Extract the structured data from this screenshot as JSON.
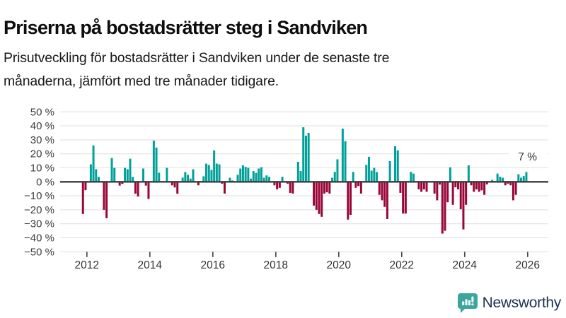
{
  "header": {
    "title": "Priserna på bostadsrätter steg i Sandviken",
    "subtitle_lines": [
      "Prisutveckling för bostadsrätter i Sandviken under de senaste tre",
      "månaderna, jämfört med tre månader tidigare."
    ]
  },
  "annotation": {
    "last_value_label": "7 %"
  },
  "branding": {
    "name": "Newsworthy",
    "icon": "bar-chart-speech-bubble-icon",
    "icon_color": "#3aa69e",
    "text_color": "#1d3150"
  },
  "chart_data": {
    "type": "bar",
    "unit": "percent",
    "frequency": "monthly",
    "start_month": "2011-11",
    "end_month": "2025-12",
    "grid": true,
    "ylim": [
      -50,
      50
    ],
    "positive_color": "#00a09b",
    "negative_color": "#990638",
    "axis_line_color": "#3c3c3c",
    "gridline_color": "#e1e1e1",
    "tick_text_color": "#3d3d3d",
    "yticks": [
      {
        "value": 50,
        "label": "50 %"
      },
      {
        "value": 40,
        "label": "40 %"
      },
      {
        "value": 30,
        "label": "30 %"
      },
      {
        "value": 20,
        "label": "20 %"
      },
      {
        "value": 10,
        "label": "10 %"
      },
      {
        "value": 0,
        "label": "0 %"
      },
      {
        "value": -10,
        "label": "−10 %"
      },
      {
        "value": -20,
        "label": "−20 %"
      },
      {
        "value": -30,
        "label": "−30 %"
      },
      {
        "value": -40,
        "label": "−40 %"
      },
      {
        "value": -50,
        "label": "−50 %"
      }
    ],
    "xticks": [
      {
        "year": 2012,
        "label": "2012"
      },
      {
        "year": 2014,
        "label": "2014"
      },
      {
        "year": 2016,
        "label": "2016"
      },
      {
        "year": 2018,
        "label": "2018"
      },
      {
        "year": 2020,
        "label": "2020"
      },
      {
        "year": 2022,
        "label": "2022"
      },
      {
        "year": 2024,
        "label": "2024"
      },
      {
        "year": 2026,
        "label": "2026"
      }
    ],
    "values": [
      -23,
      -6,
      0,
      12.5,
      26,
      9,
      3.5,
      0,
      -20,
      -26,
      0,
      17,
      10,
      0,
      -2.7,
      -1.5,
      10,
      9,
      16.5,
      3.5,
      -8.5,
      -10.5,
      0,
      9.5,
      -2.7,
      -12.3,
      0,
      29.5,
      24.5,
      6.5,
      0,
      0,
      10,
      0,
      -2.5,
      -4,
      -8.5,
      0,
      3,
      7,
      5,
      2.3,
      9,
      0,
      -2.5,
      0,
      4,
      13,
      12,
      8.6,
      22.5,
      13,
      12.5,
      -1.3,
      -8.4,
      0,
      2.9,
      1,
      0,
      5,
      9.5,
      11.8,
      10.7,
      10,
      2.3,
      7.7,
      6.4,
      9.5,
      10.5,
      2.9,
      4.6,
      3.6,
      0,
      -2.5,
      -5.4,
      -4.3,
      3.6,
      0,
      -1.3,
      -7.9,
      -8.4,
      0,
      14.3,
      7.7,
      39,
      33,
      35,
      0,
      -17,
      -20,
      -23,
      -25,
      -8.4,
      -7.5,
      -8.4,
      2.9,
      7.1,
      16.1,
      0,
      38,
      29,
      -27,
      -23.6,
      7.1,
      -4.3,
      -3,
      -8.4,
      0,
      12.1,
      17.9,
      8,
      10,
      7,
      -9.3,
      -13.2,
      -17.9,
      -26.6,
      14.8,
      0,
      25.4,
      22.5,
      -7.9,
      -22.7,
      -22.7,
      0,
      7.1,
      5.9,
      0,
      -5.4,
      -7.1,
      -5.4,
      -7.1,
      0,
      0,
      -8.4,
      -13.2,
      -2,
      -37,
      -35,
      -14.6,
      10.4,
      -16.4,
      -3.9,
      -5.4,
      -19.6,
      -34,
      -16.4,
      11.8,
      -2.5,
      -7.1,
      -5.4,
      -7.1,
      -6.1,
      -9.3,
      -1.8,
      0,
      1.4,
      0,
      5.9,
      3.6,
      2.9,
      -2.5,
      -1.3,
      -2.5,
      -13.2,
      -9.3,
      5.4,
      2.9,
      4.1,
      7
    ]
  }
}
